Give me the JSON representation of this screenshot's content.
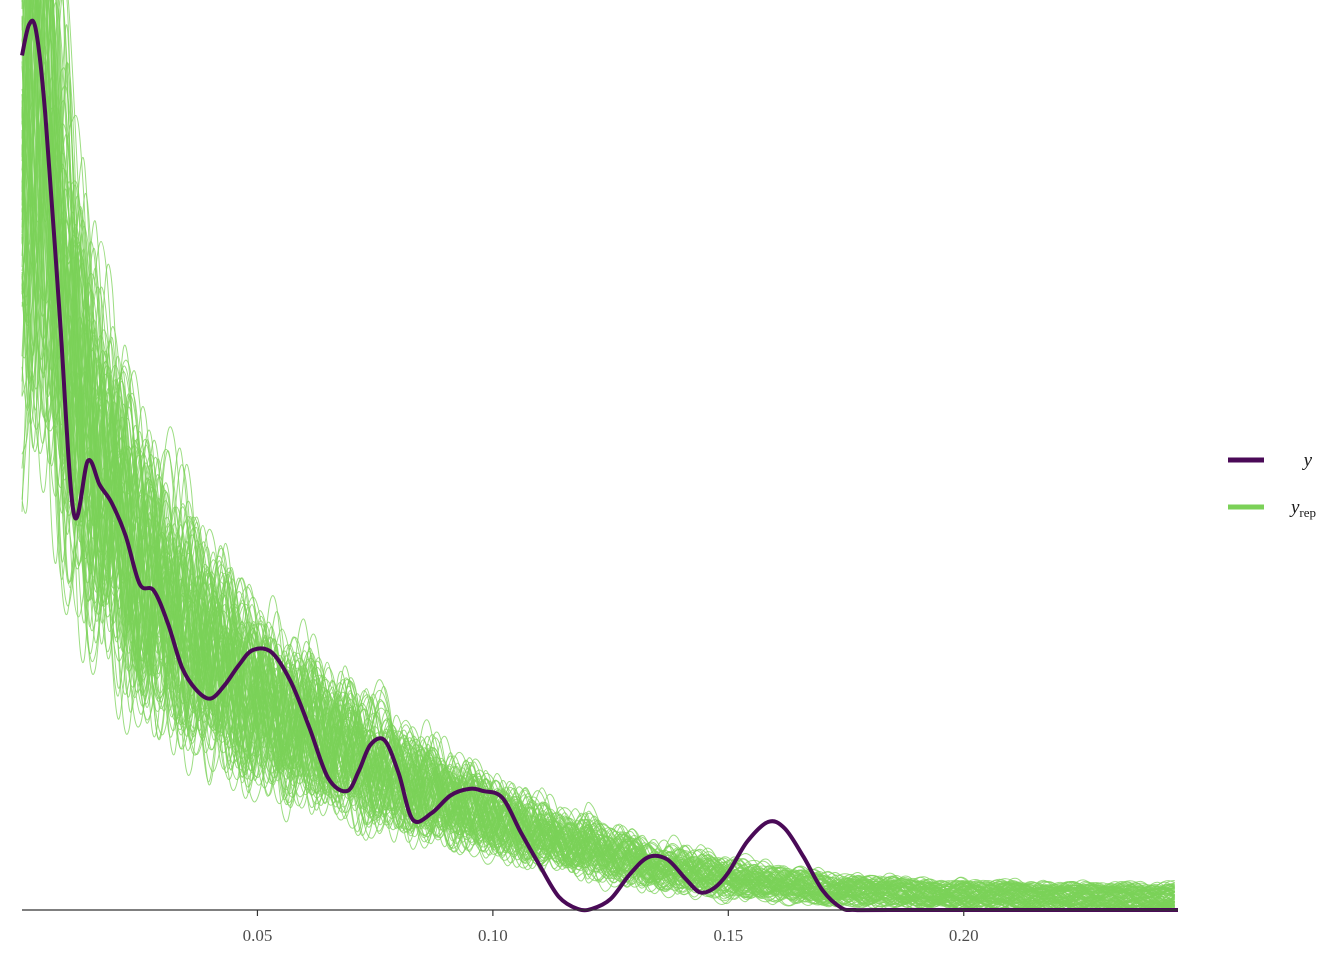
{
  "colors": {
    "observed": "#4a0a57",
    "replicated": "#7bd158",
    "axis": "#333333",
    "tick_text": "#4d4d4d"
  },
  "chart_data": {
    "type": "line",
    "title": "",
    "xlabel": "",
    "ylabel": "",
    "xlim": [
      0.0,
      0.2455
    ],
    "ylim": [
      0,
      40.5
    ],
    "grid": false,
    "y_axis_shown": false,
    "x_ticks": [
      {
        "value": 0.05,
        "label": "0.05"
      },
      {
        "value": 0.1,
        "label": "0.10"
      },
      {
        "value": 0.15,
        "label": "0.15"
      },
      {
        "value": 0.2,
        "label": "0.20"
      }
    ],
    "legend": {
      "placement": "right",
      "entries": [
        {
          "key": "y",
          "label": "y",
          "sub": "",
          "color": "#4a0a57"
        },
        {
          "key": "yrep",
          "label": "y",
          "sub": "rep",
          "color": "#7bd158"
        }
      ]
    },
    "series": [
      {
        "name": "y",
        "color": "#4a0a57",
        "x": [
          0.0,
          0.0015,
          0.003,
          0.005,
          0.008,
          0.011,
          0.014,
          0.0165,
          0.019,
          0.022,
          0.025,
          0.028,
          0.031,
          0.034,
          0.037,
          0.04,
          0.043,
          0.046,
          0.049,
          0.053,
          0.057,
          0.061,
          0.065,
          0.069,
          0.0715,
          0.074,
          0.077,
          0.08,
          0.083,
          0.087,
          0.091,
          0.095,
          0.098,
          0.102,
          0.106,
          0.11,
          0.114,
          0.118,
          0.121,
          0.125,
          0.129,
          0.133,
          0.137,
          0.141,
          0.144,
          0.147,
          0.15,
          0.154,
          0.1585,
          0.162,
          0.166,
          0.17,
          0.174,
          0.177,
          0.185,
          0.2455
        ],
        "y": [
          38.8,
          40.2,
          39.9,
          36.0,
          27.0,
          18.0,
          20.4,
          19.3,
          18.5,
          17.0,
          14.8,
          14.5,
          13.0,
          11.0,
          10.0,
          9.6,
          10.2,
          11.1,
          11.8,
          11.7,
          10.4,
          8.3,
          6.0,
          5.4,
          6.3,
          7.5,
          7.7,
          6.2,
          4.1,
          4.4,
          5.2,
          5.5,
          5.4,
          5.1,
          3.5,
          2.0,
          0.6,
          0.05,
          0.05,
          0.5,
          1.6,
          2.4,
          2.3,
          1.4,
          0.8,
          1.0,
          1.7,
          3.1,
          4.0,
          3.7,
          2.4,
          0.9,
          0.1,
          0.0,
          0.0,
          0.0
        ]
      },
      {
        "name": "y_rep",
        "color": "#7bd158",
        "draws": 100,
        "x": [
          0.0,
          0.0015,
          0.003,
          0.005,
          0.008,
          0.011,
          0.014,
          0.017,
          0.02,
          0.025,
          0.03,
          0.035,
          0.04,
          0.045,
          0.05,
          0.055,
          0.06,
          0.065,
          0.07,
          0.075,
          0.08,
          0.085,
          0.09,
          0.095,
          0.1,
          0.105,
          0.11,
          0.115,
          0.12,
          0.125,
          0.13,
          0.135,
          0.14,
          0.145,
          0.15,
          0.155,
          0.16,
          0.165,
          0.17,
          0.175,
          0.18,
          0.185,
          0.19,
          0.195,
          0.2,
          0.205,
          0.21,
          0.215,
          0.22,
          0.225,
          0.23,
          0.235,
          0.24,
          0.2455
        ],
        "mean": [
          37.0,
          38.8,
          38.5,
          35.0,
          28.0,
          24.5,
          21.5,
          19.5,
          18.0,
          15.8,
          14.0,
          12.6,
          11.4,
          10.4,
          9.6,
          8.9,
          8.2,
          7.6,
          7.0,
          6.5,
          6.0,
          5.5,
          5.0,
          4.6,
          4.2,
          3.8,
          3.45,
          3.1,
          2.8,
          2.5,
          2.25,
          2.0,
          1.8,
          1.6,
          1.45,
          1.3,
          1.18,
          1.07,
          0.98,
          0.9,
          0.85,
          0.8,
          0.76,
          0.73,
          0.7,
          0.68,
          0.66,
          0.64,
          0.62,
          0.61,
          0.6,
          0.59,
          0.58,
          0.58
        ]
      }
    ]
  }
}
